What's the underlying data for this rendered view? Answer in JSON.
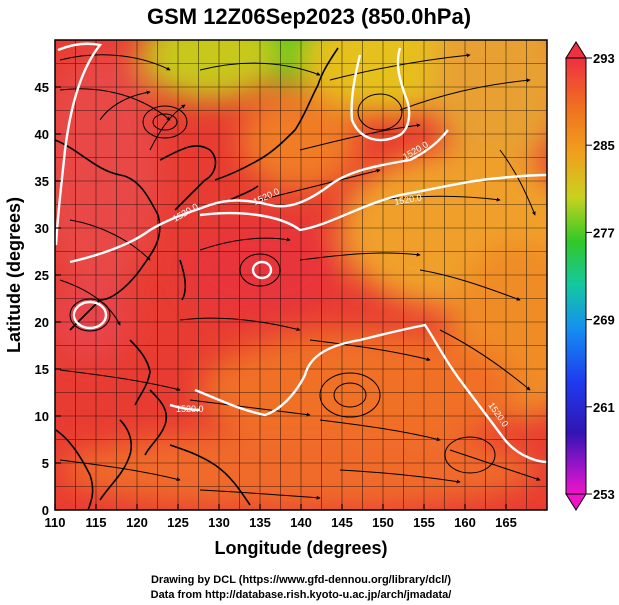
{
  "title": "GSM 12Z06Sep2023 (850.0hPa)",
  "xlabel": "Longitude (degrees)",
  "ylabel": "Latitude  (degrees)",
  "x_ticks": [
    "110",
    "115",
    "120",
    "125",
    "130",
    "135",
    "140",
    "145",
    "150",
    "155",
    "160",
    "165"
  ],
  "y_ticks": [
    "0",
    "5",
    "10",
    "15",
    "20",
    "25",
    "30",
    "35",
    "40",
    "45"
  ],
  "colorbar": {
    "labels": [
      "293",
      "285",
      "277",
      "269",
      "261",
      "253"
    ],
    "min": 253,
    "max": 293
  },
  "contour_labels": [
    "1520.0",
    "1520.0",
    "1520.0",
    "1520.0",
    "1520.0",
    "1520.0"
  ],
  "credits": {
    "line1": "Drawing by DCL (https://www.gfd-dennou.org/library/dcl/)",
    "line2": "Data from http://database.rish.kyoto-u.ac.jp/arch/jmadata/"
  },
  "map_data": {
    "lon_range": [
      110,
      170
    ],
    "lat_range": [
      0,
      50
    ],
    "grid_step_deg": 2.5,
    "field": "temperature (K) shaded, 1520.0 contour, streamlines",
    "colors": {
      "warm": "#e8343a",
      "orange": "#f07c24",
      "yellow": "#e6c81e",
      "green": "#32c81e",
      "contour": "#ffffff",
      "coast": "#000000"
    }
  }
}
